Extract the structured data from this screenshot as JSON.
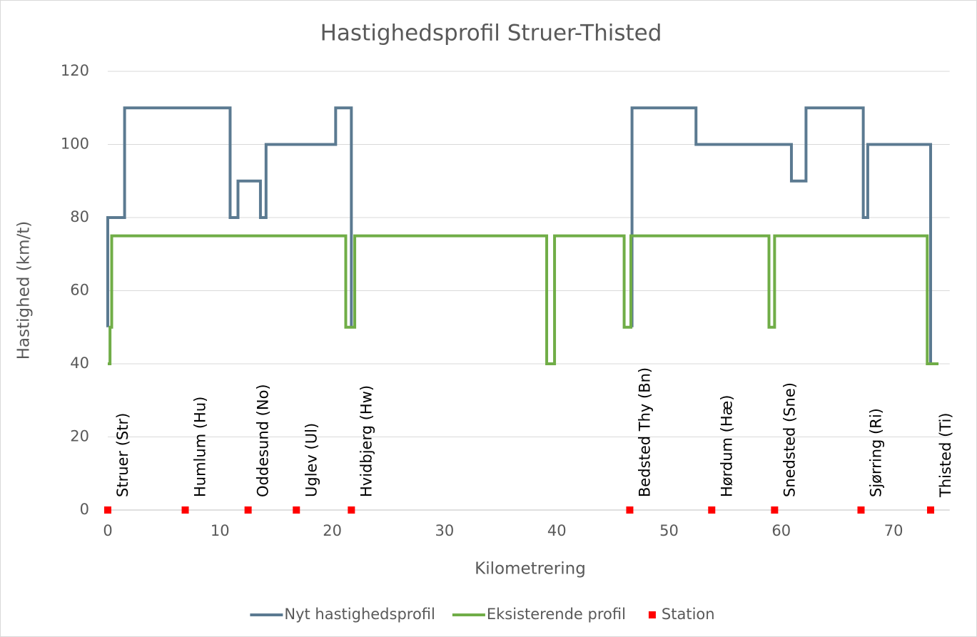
{
  "chart_data": {
    "type": "line",
    "title": "Hastighedsprofil Struer-Thisted",
    "xlabel": "Kilometrering",
    "ylabel": "Hastighed (km/t)",
    "xlim": [
      0,
      75
    ],
    "xticks": [
      0,
      10,
      20,
      30,
      40,
      50,
      60,
      70
    ],
    "ylim": [
      0,
      120
    ],
    "yticks": [
      0,
      20,
      40,
      60,
      80,
      100,
      120
    ],
    "grid": true,
    "legend": "bottom",
    "series": [
      {
        "name": "Nyt hastighedsprofil",
        "color": "#5b7a91",
        "type": "line",
        "x": [
          0,
          0,
          1.5,
          1.5,
          10.9,
          10.9,
          11.6,
          11.6,
          13.6,
          13.6,
          14.1,
          14.1,
          20.3,
          20.3,
          21.7,
          21.7,
          null,
          46.7,
          46.7,
          52.4,
          52.4,
          60.9,
          60.9,
          62.2,
          62.2,
          67.3,
          67.3,
          67.7,
          67.7,
          73.3,
          73.3,
          74.0
        ],
        "values": [
          50,
          80,
          80,
          110,
          110,
          80,
          80,
          90,
          90,
          80,
          80,
          100,
          100,
          110,
          110,
          50,
          null,
          50,
          110,
          110,
          100,
          100,
          90,
          90,
          110,
          110,
          80,
          80,
          100,
          100,
          40,
          40
        ]
      },
      {
        "name": "Eksisterende profil",
        "color": "#70ad47",
        "type": "line",
        "x": [
          0,
          0.2,
          0.2,
          0.35,
          0.35,
          21.2,
          21.2,
          22.0,
          22.0,
          39.1,
          39.1,
          39.8,
          39.8,
          46.0,
          46.0,
          46.6,
          46.6,
          58.9,
          58.9,
          59.4,
          59.4,
          73.0,
          73.0,
          74.0
        ],
        "values": [
          40,
          40,
          50,
          50,
          75,
          75,
          50,
          50,
          75,
          75,
          40,
          40,
          75,
          75,
          50,
          50,
          75,
          75,
          50,
          50,
          75,
          75,
          40,
          40
        ]
      },
      {
        "name": "Station",
        "color": "#ff0000",
        "type": "scatter",
        "x": [
          0,
          6.9,
          12.5,
          16.8,
          21.7,
          46.5,
          53.8,
          59.4,
          67.1,
          73.3
        ],
        "values": [
          0,
          0,
          0,
          0,
          0,
          0,
          0,
          0,
          0,
          0
        ],
        "labels": [
          "Struer (Str)",
          "Humlum (Hu)",
          "Oddesund (No)",
          "Uglev (Ul)",
          "Hvidbjerg (Hw)",
          "Bedsted Thy (Bn)",
          "Hørdum (Hæ)",
          "Snedsted (Sne)",
          "Sjørring (Ri)",
          "Thisted (Ti)"
        ]
      }
    ]
  }
}
